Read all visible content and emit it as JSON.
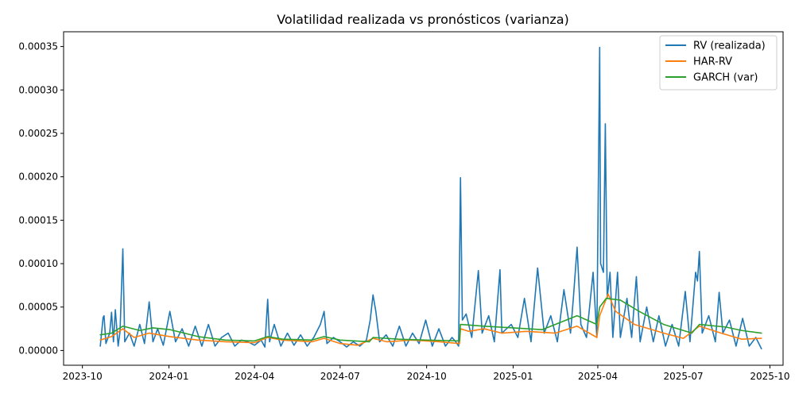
{
  "chart_data": {
    "type": "line",
    "title": "Volatilidad realizada vs pronósticos (varianza)",
    "xlabel": "",
    "ylabel": "",
    "x_ticks": [
      "2023-10",
      "2024-01",
      "2024-04",
      "2024-07",
      "2024-10",
      "2025-01",
      "2025-04",
      "2025-07",
      "2025-10"
    ],
    "y_ticks": [
      "0.00000",
      "0.00005",
      "0.00010",
      "0.00015",
      "0.00020",
      "0.00025",
      "0.00030",
      "0.00035"
    ],
    "xlim": [
      "2023-09-11",
      "2025-10-15"
    ],
    "ylim": [
      -1.7e-05,
      0.000367
    ],
    "grid": false,
    "legend_position": "top-right",
    "series": [
      {
        "name": "RV (realizada)",
        "color": "#1f77b4",
        "points": [
          [
            "2023-10-20",
            5e-06
          ],
          [
            "2023-10-23",
            3.8e-05
          ],
          [
            "2023-10-24",
            4e-05
          ],
          [
            "2023-10-26",
            8e-06
          ],
          [
            "2023-10-30",
            2e-05
          ],
          [
            "2023-11-01",
            4.4e-05
          ],
          [
            "2023-11-03",
            1e-05
          ],
          [
            "2023-11-05",
            4.7e-05
          ],
          [
            "2023-11-08",
            5e-06
          ],
          [
            "2023-11-10",
            2.2e-05
          ],
          [
            "2023-11-13",
            0.000117
          ],
          [
            "2023-11-15",
            1e-05
          ],
          [
            "2023-11-20",
            2e-05
          ],
          [
            "2023-11-25",
            5e-06
          ],
          [
            "2023-12-01",
            3e-05
          ],
          [
            "2023-12-06",
            8e-06
          ],
          [
            "2023-12-11",
            5.6e-05
          ],
          [
            "2023-12-15",
            1e-05
          ],
          [
            "2023-12-20",
            2.5e-05
          ],
          [
            "2023-12-26",
            6e-06
          ],
          [
            "2024-01-02",
            4.5e-05
          ],
          [
            "2024-01-08",
            1e-05
          ],
          [
            "2024-01-15",
            2.5e-05
          ],
          [
            "2024-01-22",
            5e-06
          ],
          [
            "2024-01-29",
            2.8e-05
          ],
          [
            "2024-02-05",
            5e-06
          ],
          [
            "2024-02-12",
            3e-05
          ],
          [
            "2024-02-19",
            5e-06
          ],
          [
            "2024-02-26",
            1.5e-05
          ],
          [
            "2024-03-04",
            2e-05
          ],
          [
            "2024-03-11",
            5e-06
          ],
          [
            "2024-03-18",
            1.2e-05
          ],
          [
            "2024-03-25",
            1e-05
          ],
          [
            "2024-04-01",
            6e-06
          ],
          [
            "2024-04-08",
            1.2e-05
          ],
          [
            "2024-04-12",
            4e-06
          ],
          [
            "2024-04-15",
            5.9e-05
          ],
          [
            "2024-04-17",
            1e-05
          ],
          [
            "2024-04-22",
            3e-05
          ],
          [
            "2024-04-29",
            5e-06
          ],
          [
            "2024-05-06",
            2e-05
          ],
          [
            "2024-05-13",
            6e-06
          ],
          [
            "2024-05-20",
            1.8e-05
          ],
          [
            "2024-05-27",
            5e-06
          ],
          [
            "2024-06-03",
            1.5e-05
          ],
          [
            "2024-06-10",
            3e-05
          ],
          [
            "2024-06-14",
            4.5e-05
          ],
          [
            "2024-06-17",
            8e-06
          ],
          [
            "2024-06-24",
            1.5e-05
          ],
          [
            "2024-07-01",
            1e-05
          ],
          [
            "2024-07-08",
            4e-06
          ],
          [
            "2024-07-15",
            1e-05
          ],
          [
            "2024-07-22",
            5e-06
          ],
          [
            "2024-07-29",
            1.2e-05
          ],
          [
            "2024-08-02",
            3.5e-05
          ],
          [
            "2024-08-05",
            6.4e-05
          ],
          [
            "2024-08-08",
            4.5e-05
          ],
          [
            "2024-08-12",
            1e-05
          ],
          [
            "2024-08-19",
            1.8e-05
          ],
          [
            "2024-08-26",
            5e-06
          ],
          [
            "2024-09-02",
            2.8e-05
          ],
          [
            "2024-09-09",
            5e-06
          ],
          [
            "2024-09-16",
            2e-05
          ],
          [
            "2024-09-23",
            8e-06
          ],
          [
            "2024-09-30",
            3.5e-05
          ],
          [
            "2024-10-07",
            5e-06
          ],
          [
            "2024-10-14",
            2.5e-05
          ],
          [
            "2024-10-21",
            5e-06
          ],
          [
            "2024-10-28",
            1.5e-05
          ],
          [
            "2024-11-01",
            1e-05
          ],
          [
            "2024-11-04",
            5e-06
          ],
          [
            "2024-11-06",
            0.000199
          ],
          [
            "2024-11-08",
            3.5e-05
          ],
          [
            "2024-11-12",
            4.2e-05
          ],
          [
            "2024-11-18",
            1.5e-05
          ],
          [
            "2024-11-25",
            9.2e-05
          ],
          [
            "2024-11-29",
            2e-05
          ],
          [
            "2024-12-06",
            4e-05
          ],
          [
            "2024-12-12",
            1e-05
          ],
          [
            "2024-12-18",
            9.3e-05
          ],
          [
            "2024-12-20",
            2e-05
          ],
          [
            "2024-12-30",
            3e-05
          ],
          [
            "2025-01-06",
            1.5e-05
          ],
          [
            "2025-01-13",
            6e-05
          ],
          [
            "2025-01-20",
            1e-05
          ],
          [
            "2025-01-27",
            9.5e-05
          ],
          [
            "2025-02-03",
            2e-05
          ],
          [
            "2025-02-10",
            4e-05
          ],
          [
            "2025-02-17",
            1e-05
          ],
          [
            "2025-02-24",
            7e-05
          ],
          [
            "2025-03-03",
            2e-05
          ],
          [
            "2025-03-06",
            6e-05
          ],
          [
            "2025-03-10",
            0.000119
          ],
          [
            "2025-03-14",
            3e-05
          ],
          [
            "2025-03-20",
            1.5e-05
          ],
          [
            "2025-03-27",
            9e-05
          ],
          [
            "2025-03-31",
            1.5e-05
          ],
          [
            "2025-04-03",
            0.000349
          ],
          [
            "2025-04-04",
            0.0001
          ],
          [
            "2025-04-07",
            9e-05
          ],
          [
            "2025-04-09",
            0.000261
          ],
          [
            "2025-04-11",
            6e-05
          ],
          [
            "2025-04-14",
            9e-05
          ],
          [
            "2025-04-17",
            1.5e-05
          ],
          [
            "2025-04-22",
            9e-05
          ],
          [
            "2025-04-25",
            1.5e-05
          ],
          [
            "2025-05-02",
            6e-05
          ],
          [
            "2025-05-07",
            1.5e-05
          ],
          [
            "2025-05-12",
            8.5e-05
          ],
          [
            "2025-05-16",
            1e-05
          ],
          [
            "2025-05-23",
            5e-05
          ],
          [
            "2025-05-30",
            1e-05
          ],
          [
            "2025-06-05",
            4e-05
          ],
          [
            "2025-06-12",
            5e-06
          ],
          [
            "2025-06-19",
            3e-05
          ],
          [
            "2025-06-26",
            5e-06
          ],
          [
            "2025-07-03",
            6.8e-05
          ],
          [
            "2025-07-08",
            1e-05
          ],
          [
            "2025-07-14",
            9e-05
          ],
          [
            "2025-07-16",
            8e-05
          ],
          [
            "2025-07-18",
            0.000114
          ],
          [
            "2025-07-21",
            2e-05
          ],
          [
            "2025-07-28",
            4e-05
          ],
          [
            "2025-08-04",
            1e-05
          ],
          [
            "2025-08-08",
            6.7e-05
          ],
          [
            "2025-08-12",
            2e-05
          ],
          [
            "2025-08-19",
            3.5e-05
          ],
          [
            "2025-08-26",
            5e-06
          ],
          [
            "2025-09-02",
            3.7e-05
          ],
          [
            "2025-09-09",
            5e-06
          ],
          [
            "2025-09-16",
            1.5e-05
          ],
          [
            "2025-09-22",
            2e-06
          ]
        ]
      },
      {
        "name": "HAR-RV",
        "color": "#ff7f0e",
        "points": [
          [
            "2023-10-20",
            1.2e-05
          ],
          [
            "2023-11-01",
            1.6e-05
          ],
          [
            "2023-11-13",
            2.5e-05
          ],
          [
            "2023-11-25",
            1.5e-05
          ],
          [
            "2023-12-11",
            2e-05
          ],
          [
            "2024-01-02",
            1.6e-05
          ],
          [
            "2024-02-01",
            1.2e-05
          ],
          [
            "2024-03-01",
            1e-05
          ],
          [
            "2024-04-01",
            9e-06
          ],
          [
            "2024-04-15",
            1.5e-05
          ],
          [
            "2024-05-01",
            1.2e-05
          ],
          [
            "2024-06-01",
            1e-05
          ],
          [
            "2024-06-14",
            1.4e-05
          ],
          [
            "2024-07-01",
            8e-06
          ],
          [
            "2024-07-20",
            6e-06
          ],
          [
            "2024-08-05",
            1.4e-05
          ],
          [
            "2024-08-20",
            1e-05
          ],
          [
            "2024-09-15",
            1.2e-05
          ],
          [
            "2024-10-15",
            1e-05
          ],
          [
            "2024-11-05",
            8e-06
          ],
          [
            "2024-11-06",
            2.5e-05
          ],
          [
            "2024-11-15",
            2.2e-05
          ],
          [
            "2024-12-01",
            2.5e-05
          ],
          [
            "2024-12-20",
            2e-05
          ],
          [
            "2025-01-15",
            2.2e-05
          ],
          [
            "2025-02-15",
            2e-05
          ],
          [
            "2025-03-10",
            2.8e-05
          ],
          [
            "2025-03-31",
            1.5e-05
          ],
          [
            "2025-04-03",
            4e-05
          ],
          [
            "2025-04-12",
            6.5e-05
          ],
          [
            "2025-04-20",
            4.5e-05
          ],
          [
            "2025-05-10",
            3e-05
          ],
          [
            "2025-06-10",
            2e-05
          ],
          [
            "2025-07-01",
            1.4e-05
          ],
          [
            "2025-07-18",
            2.8e-05
          ],
          [
            "2025-08-10",
            2e-05
          ],
          [
            "2025-09-01",
            1.3e-05
          ],
          [
            "2025-09-22",
            1.4e-05
          ]
        ]
      },
      {
        "name": "GARCH (var)",
        "color": "#2ca02c",
        "points": [
          [
            "2023-10-20",
            1.8e-05
          ],
          [
            "2023-11-01",
            2e-05
          ],
          [
            "2023-11-13",
            2.8e-05
          ],
          [
            "2023-12-01",
            2.3e-05
          ],
          [
            "2023-12-15",
            2.6e-05
          ],
          [
            "2024-01-02",
            2.4e-05
          ],
          [
            "2024-02-01",
            1.6e-05
          ],
          [
            "2024-03-01",
            1.2e-05
          ],
          [
            "2024-04-01",
            1.1e-05
          ],
          [
            "2024-04-15",
            1.6e-05
          ],
          [
            "2024-05-01",
            1.3e-05
          ],
          [
            "2024-06-01",
            1.2e-05
          ],
          [
            "2024-06-14",
            1.6e-05
          ],
          [
            "2024-07-01",
            1.2e-05
          ],
          [
            "2024-08-01",
            1e-05
          ],
          [
            "2024-08-05",
            1.5e-05
          ],
          [
            "2024-09-01",
            1.3e-05
          ],
          [
            "2024-10-01",
            1.2e-05
          ],
          [
            "2024-11-05",
            1.1e-05
          ],
          [
            "2024-11-06",
            3e-05
          ],
          [
            "2024-12-01",
            2.8e-05
          ],
          [
            "2025-01-01",
            2.6e-05
          ],
          [
            "2025-02-01",
            2.4e-05
          ],
          [
            "2025-03-10",
            4e-05
          ],
          [
            "2025-03-31",
            3e-05
          ],
          [
            "2025-04-03",
            5e-05
          ],
          [
            "2025-04-10",
            6e-05
          ],
          [
            "2025-04-25",
            5.8e-05
          ],
          [
            "2025-05-15",
            4.5e-05
          ],
          [
            "2025-06-10",
            3e-05
          ],
          [
            "2025-07-10",
            2e-05
          ],
          [
            "2025-07-18",
            3e-05
          ],
          [
            "2025-08-15",
            2.7e-05
          ],
          [
            "2025-09-01",
            2.3e-05
          ],
          [
            "2025-09-22",
            2e-05
          ]
        ]
      }
    ]
  }
}
